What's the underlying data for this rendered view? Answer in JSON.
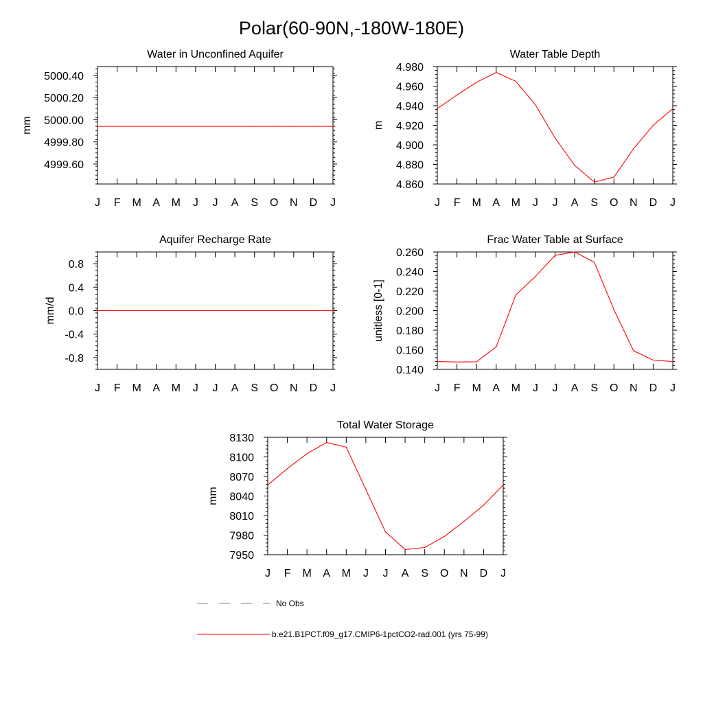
{
  "figure": {
    "title": "Polar(60-90N,-180W-180E)"
  },
  "chart_data": [
    {
      "type": "line",
      "title": "Water in Unconfined Aquifer",
      "xlabel": "",
      "ylabel": "mm",
      "categories": [
        "J",
        "F",
        "M",
        "A",
        "M",
        "J",
        "J",
        "A",
        "S",
        "O",
        "N",
        "D",
        "J"
      ],
      "ylim": [
        4999.42,
        5000.48
      ],
      "yticks": [
        5000.4,
        5000.2,
        5000.0,
        4999.8,
        4999.6
      ],
      "ytick_labels": [
        "5000.40",
        "5000.20",
        "5000.00",
        "4999.80",
        "4999.60"
      ],
      "series": [
        {
          "color": "#ff0000",
          "values": [
            4999.94,
            4999.94,
            4999.94,
            4999.94,
            4999.94,
            4999.94,
            4999.94,
            4999.94,
            4999.94,
            4999.94,
            4999.94,
            4999.94,
            4999.94
          ]
        }
      ]
    },
    {
      "type": "line",
      "title": "Water Table Depth",
      "xlabel": "",
      "ylabel": "m",
      "categories": [
        "J",
        "F",
        "M",
        "A",
        "M",
        "J",
        "J",
        "A",
        "S",
        "O",
        "N",
        "D",
        "J"
      ],
      "ylim": [
        4.86,
        4.98
      ],
      "yticks": [
        4.98,
        4.96,
        4.94,
        4.92,
        4.9,
        4.88,
        4.86
      ],
      "ytick_labels": [
        "4.980",
        "4.960",
        "4.940",
        "4.920",
        "4.900",
        "4.880",
        "4.860"
      ],
      "series": [
        {
          "color": "#ff0000",
          "values": [
            4.937,
            4.951,
            4.964,
            4.974,
            4.965,
            4.941,
            4.907,
            4.879,
            4.862,
            4.867,
            4.896,
            4.92,
            4.937
          ]
        }
      ]
    },
    {
      "type": "line",
      "title": "Aquifer Recharge Rate",
      "xlabel": "",
      "ylabel": "mm/d",
      "categories": [
        "J",
        "F",
        "M",
        "A",
        "M",
        "J",
        "J",
        "A",
        "S",
        "O",
        "N",
        "D",
        "J"
      ],
      "ylim": [
        -1.0,
        1.0
      ],
      "yticks": [
        0.8,
        0.4,
        0.0,
        -0.4,
        -0.8
      ],
      "ytick_labels": [
        "0.8",
        "0.4",
        "0.0",
        "-0.4",
        "-0.8"
      ],
      "series": [
        {
          "color": "#ff0000",
          "values": [
            0,
            0,
            0,
            0,
            0,
            0,
            0,
            0,
            0,
            0,
            0,
            0,
            0
          ]
        }
      ]
    },
    {
      "type": "line",
      "title": "Frac Water Table at Surface",
      "xlabel": "",
      "ylabel": "unitless [0-1]",
      "categories": [
        "J",
        "F",
        "M",
        "A",
        "M",
        "J",
        "J",
        "A",
        "S",
        "O",
        "N",
        "D",
        "J"
      ],
      "ylim": [
        0.14,
        0.26
      ],
      "yticks": [
        0.26,
        0.24,
        0.22,
        0.2,
        0.18,
        0.16,
        0.14
      ],
      "ytick_labels": [
        "0.260",
        "0.240",
        "0.220",
        "0.200",
        "0.180",
        "0.160",
        "0.140"
      ],
      "series": [
        {
          "color": "#ff0000",
          "values": [
            0.148,
            0.1475,
            0.1478,
            0.163,
            0.216,
            0.235,
            0.2565,
            0.26,
            0.2495,
            0.201,
            0.159,
            0.1495,
            0.148
          ]
        }
      ]
    },
    {
      "type": "line",
      "title": "Total Water Storage",
      "xlabel": "",
      "ylabel": "mm",
      "categories": [
        "J",
        "F",
        "M",
        "A",
        "M",
        "J",
        "J",
        "A",
        "S",
        "O",
        "N",
        "D",
        "J"
      ],
      "ylim": [
        7950,
        8130
      ],
      "yticks": [
        8130,
        8100,
        8070,
        8040,
        8010,
        7980,
        7950
      ],
      "ytick_labels": [
        "8130",
        "8100",
        "8070",
        "8040",
        "8010",
        "7980",
        "7950"
      ],
      "series": [
        {
          "color": "#ff0000",
          "values": [
            8057,
            8082,
            8105,
            8122,
            8115,
            8050,
            7985,
            7958,
            7961,
            7978,
            8001,
            8026,
            8057
          ]
        }
      ]
    }
  ],
  "legend": {
    "entries": [
      {
        "label": "No Obs",
        "color": "#808080",
        "style": "dashed"
      },
      {
        "label": "b.e21.B1PCT.f09_g17.CMIP6-1pctCO2-rad.001 (yrs 75-99)",
        "color": "#ff0000",
        "style": "solid"
      }
    ]
  }
}
